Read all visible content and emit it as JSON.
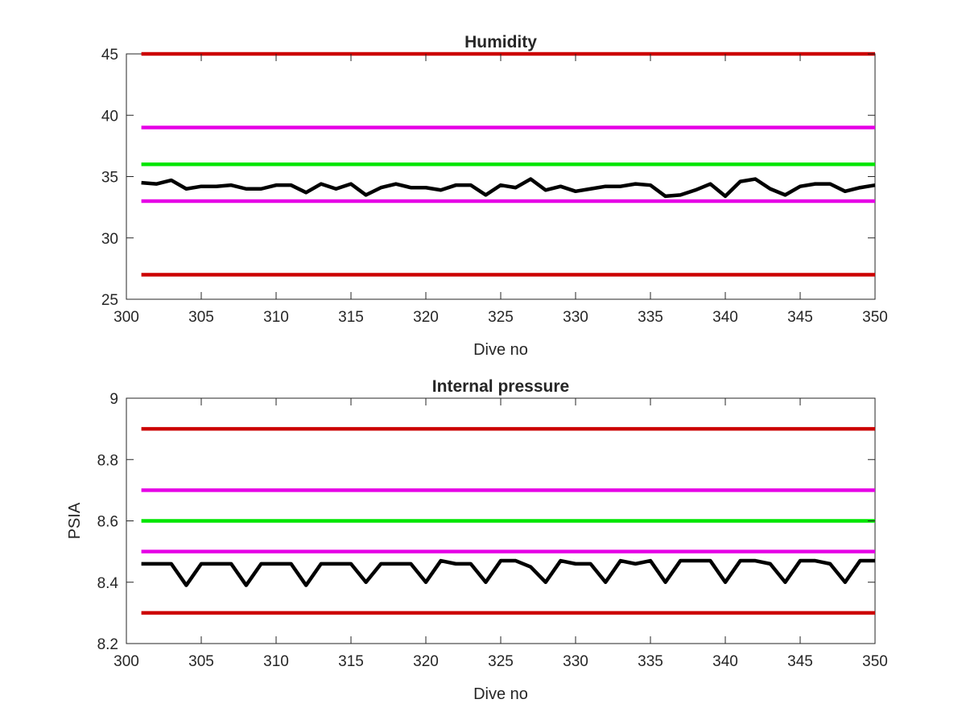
{
  "chart_data": [
    {
      "type": "line",
      "title": "Humidity",
      "xlabel": "Dive no",
      "ylabel": "",
      "xlim": [
        300,
        350
      ],
      "ylim": [
        25,
        45
      ],
      "xticks": [
        300,
        305,
        310,
        315,
        320,
        325,
        330,
        335,
        340,
        345,
        350
      ],
      "yticks": [
        25,
        30,
        35,
        40,
        45
      ],
      "xtick_labels": [
        "300",
        "305",
        "310",
        "315",
        "320",
        "325",
        "330",
        "335",
        "340",
        "345",
        "350"
      ],
      "ytick_labels": [
        "25",
        "30",
        "35",
        "40",
        "45"
      ],
      "grid": false,
      "series": [
        {
          "color": "#cc0000",
          "x": [
            301,
            350
          ],
          "values": [
            45,
            45
          ]
        },
        {
          "color": "#e600e6",
          "x": [
            301,
            350
          ],
          "values": [
            39,
            39
          ]
        },
        {
          "color": "#00e600",
          "x": [
            301,
            350
          ],
          "values": [
            36,
            36
          ]
        },
        {
          "color": "#e600e6",
          "x": [
            301,
            350
          ],
          "values": [
            33,
            33
          ]
        },
        {
          "color": "#cc0000",
          "x": [
            301,
            350
          ],
          "values": [
            27,
            27
          ]
        },
        {
          "color": "#000000",
          "x": [
            301,
            302,
            303,
            304,
            305,
            306,
            307,
            308,
            309,
            310,
            311,
            312,
            313,
            314,
            315,
            316,
            317,
            318,
            319,
            320,
            321,
            322,
            323,
            324,
            325,
            326,
            327,
            328,
            329,
            330,
            331,
            332,
            333,
            334,
            335,
            336,
            337,
            338,
            339,
            340,
            341,
            342,
            343,
            344,
            345,
            346,
            347,
            348,
            349,
            350
          ],
          "values": [
            34.5,
            34.4,
            34.7,
            34.0,
            34.2,
            34.2,
            34.3,
            34.0,
            34.0,
            34.3,
            34.3,
            33.7,
            34.4,
            34.0,
            34.4,
            33.5,
            34.1,
            34.4,
            34.1,
            34.1,
            33.9,
            34.3,
            34.3,
            33.5,
            34.3,
            34.1,
            34.8,
            33.9,
            34.2,
            33.8,
            34.0,
            34.2,
            34.2,
            34.4,
            34.3,
            33.4,
            33.5,
            33.9,
            34.4,
            33.4,
            34.6,
            34.8,
            34.0,
            33.5,
            34.2,
            34.4,
            34.4,
            33.8,
            34.1,
            34.3
          ]
        }
      ]
    },
    {
      "type": "line",
      "title": "Internal pressure",
      "xlabel": "Dive no",
      "ylabel": "PSIA",
      "xlim": [
        300,
        350
      ],
      "ylim": [
        8.2,
        9.0
      ],
      "xticks": [
        300,
        305,
        310,
        315,
        320,
        325,
        330,
        335,
        340,
        345,
        350
      ],
      "yticks": [
        8.2,
        8.4,
        8.6,
        8.8,
        9.0
      ],
      "xtick_labels": [
        "300",
        "305",
        "310",
        "315",
        "320",
        "325",
        "330",
        "335",
        "340",
        "345",
        "350"
      ],
      "ytick_labels": [
        "8.2",
        "8.4",
        "8.6",
        "8.8",
        "9"
      ],
      "grid": false,
      "series": [
        {
          "color": "#cc0000",
          "x": [
            301,
            350
          ],
          "values": [
            8.9,
            8.9
          ]
        },
        {
          "color": "#e600e6",
          "x": [
            301,
            350
          ],
          "values": [
            8.7,
            8.7
          ]
        },
        {
          "color": "#00e600",
          "x": [
            301,
            350
          ],
          "values": [
            8.6,
            8.6
          ]
        },
        {
          "color": "#e600e6",
          "x": [
            301,
            350
          ],
          "values": [
            8.5,
            8.5
          ]
        },
        {
          "color": "#cc0000",
          "x": [
            301,
            350
          ],
          "values": [
            8.3,
            8.3
          ]
        },
        {
          "color": "#000000",
          "x": [
            301,
            302,
            303,
            304,
            305,
            306,
            307,
            308,
            309,
            310,
            311,
            312,
            313,
            314,
            315,
            316,
            317,
            318,
            319,
            320,
            321,
            322,
            323,
            324,
            325,
            326,
            327,
            328,
            329,
            330,
            331,
            332,
            333,
            334,
            335,
            336,
            337,
            338,
            339,
            340,
            341,
            342,
            343,
            344,
            345,
            346,
            347,
            348,
            349,
            350
          ],
          "values": [
            8.46,
            8.46,
            8.46,
            8.39,
            8.46,
            8.46,
            8.46,
            8.39,
            8.46,
            8.46,
            8.46,
            8.39,
            8.46,
            8.46,
            8.46,
            8.4,
            8.46,
            8.46,
            8.46,
            8.4,
            8.47,
            8.46,
            8.46,
            8.4,
            8.47,
            8.47,
            8.45,
            8.4,
            8.47,
            8.46,
            8.46,
            8.4,
            8.47,
            8.46,
            8.47,
            8.4,
            8.47,
            8.47,
            8.47,
            8.4,
            8.47,
            8.47,
            8.46,
            8.4,
            8.47,
            8.47,
            8.46,
            8.4,
            8.47,
            8.47
          ]
        }
      ]
    }
  ]
}
